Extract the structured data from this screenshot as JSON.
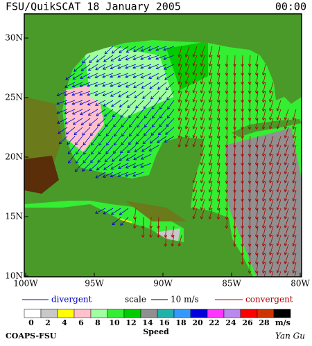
{
  "header": {
    "title": "FSU/QuikSCAT  18 January 2005",
    "time": "00:00"
  },
  "map": {
    "lat_labels": [
      "30N",
      "25N",
      "20N",
      "15N",
      "10N"
    ],
    "lon_labels": [
      "100W",
      "95W",
      "90W",
      "85W",
      "80W"
    ]
  },
  "legend": {
    "divergent": "divergent",
    "scale": "scale",
    "scale_value": "10 m/s",
    "convergent": "convergent",
    "divergent_color": "#0000cc",
    "convergent_color": "#aa0000"
  },
  "colorbar": {
    "values": [
      0,
      2,
      4,
      6,
      8,
      10,
      12,
      14,
      16,
      18,
      20,
      22,
      24,
      26,
      28
    ],
    "unit": "m/s",
    "label": "Speed",
    "colors": [
      "#ffffff",
      "#c8c8c8",
      "#ffff00",
      "#ffc0cb",
      "#a0ffa0",
      "#33ee33",
      "#00cc00",
      "#909090",
      "#20b2aa",
      "#3399ff",
      "#0000dd",
      "#ff33ff",
      "#bb88ee",
      "#ff0000",
      "#cc3300",
      "#000000"
    ]
  },
  "footer": {
    "left": "COAPS-FSU",
    "right": "Yan Gu"
  }
}
